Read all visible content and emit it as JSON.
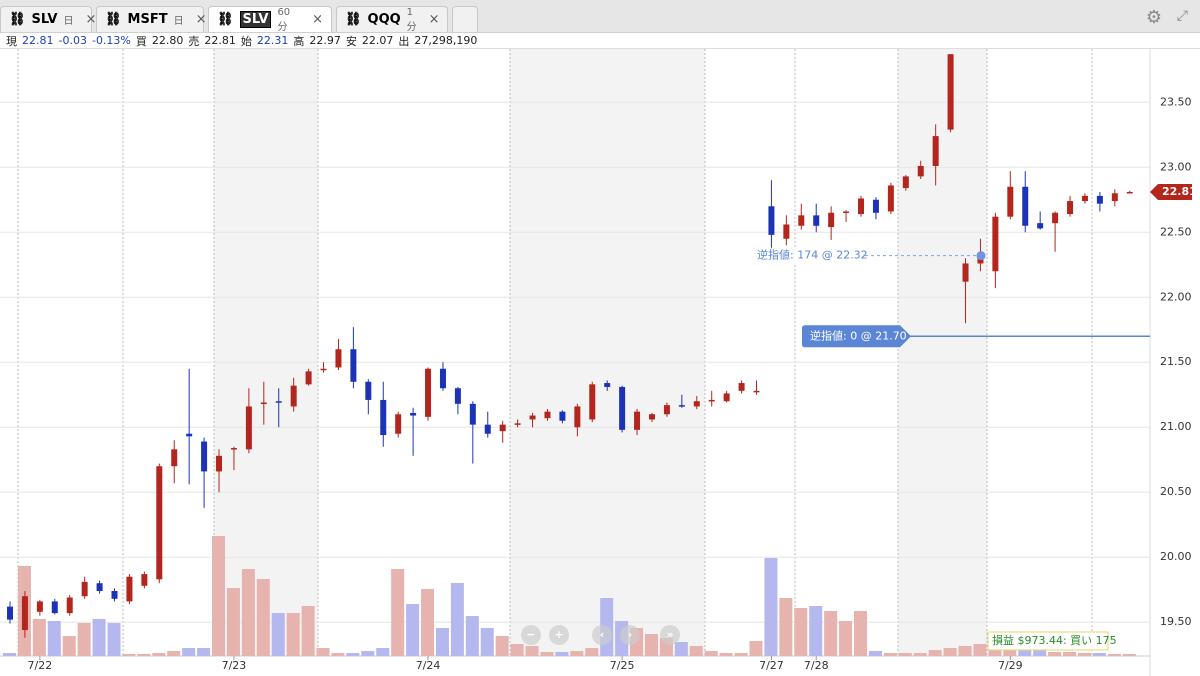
{
  "tabs": [
    {
      "symbol": "SLV",
      "interval": "日"
    },
    {
      "symbol": "MSFT",
      "interval": "日"
    },
    {
      "symbol": "SLV",
      "interval": "60 分"
    },
    {
      "symbol": "QQQ",
      "interval": "1 分"
    }
  ],
  "quote": {
    "last_label": "現",
    "last": "22.81",
    "change": "-0.03",
    "change_pct": "-0.13%",
    "bid_label": "買",
    "bid": "22.80",
    "ask_label": "売",
    "ask": "22.81",
    "open_label": "始",
    "open": "22.31",
    "high_label": "高",
    "high": "22.97",
    "low_label": "安",
    "low": "22.07",
    "volume_label": "出",
    "volume": "27,298,190"
  },
  "chart_data": {
    "type": "candlestick",
    "categories": [
      null,
      null,
      "7/22",
      null,
      null,
      null,
      null,
      null,
      null,
      null,
      null,
      null,
      null,
      null,
      null,
      "7/23",
      null,
      null,
      null,
      null,
      null,
      null,
      null,
      null,
      null,
      null,
      null,
      null,
      "7/24",
      null,
      null,
      null,
      null,
      null,
      null,
      null,
      null,
      null,
      null,
      null,
      null,
      "7/25",
      null,
      null,
      null,
      null,
      null,
      null,
      null,
      null,
      null,
      "7/27",
      null,
      null,
      "7/28",
      null,
      null,
      null,
      null,
      null,
      null,
      null,
      null,
      null,
      null,
      null,
      null,
      "7/29",
      null,
      null,
      null,
      null,
      null,
      null,
      null,
      null
    ],
    "candles": {
      "open": [
        19.62,
        19.44,
        19.58,
        19.66,
        19.57,
        19.7,
        19.8,
        19.74,
        19.66,
        19.78,
        19.83,
        20.7,
        20.95,
        20.89,
        20.66,
        20.83,
        20.83,
        21.18,
        21.2,
        21.16,
        21.33,
        21.44,
        21.46,
        21.6,
        21.35,
        21.21,
        20.95,
        21.11,
        21.08,
        21.45,
        21.3,
        21.18,
        21.02,
        20.97,
        21.02,
        21.06,
        21.07,
        21.12,
        21.0,
        21.06,
        21.34,
        21.31,
        20.98,
        21.06,
        21.1,
        21.17,
        21.16,
        21.2,
        21.2,
        21.28,
        21.27,
        22.7,
        22.45,
        22.55,
        22.63,
        22.54,
        22.65,
        22.64,
        22.75,
        22.66,
        22.84,
        22.93,
        23.01,
        23.29,
        22.12,
        22.26,
        22.2,
        22.62,
        22.85,
        22.57,
        22.57,
        22.64,
        22.74,
        22.78,
        22.74,
        22.81
      ],
      "high": [
        19.66,
        19.74,
        19.67,
        19.68,
        19.71,
        19.85,
        19.82,
        19.76,
        19.87,
        19.89,
        20.72,
        20.9,
        21.45,
        20.92,
        20.83,
        20.85,
        21.3,
        21.35,
        21.3,
        21.38,
        21.45,
        21.5,
        21.68,
        21.77,
        21.37,
        21.35,
        21.12,
        21.15,
        21.46,
        21.5,
        21.31,
        21.2,
        21.12,
        21.05,
        21.06,
        21.11,
        21.14,
        21.13,
        21.18,
        21.35,
        21.36,
        21.32,
        21.14,
        21.11,
        21.19,
        21.25,
        21.24,
        21.28,
        21.28,
        21.36,
        21.36,
        22.9,
        22.63,
        22.72,
        22.72,
        22.7,
        22.67,
        22.78,
        22.77,
        22.88,
        22.94,
        23.05,
        23.33,
        23.87,
        22.3,
        22.45,
        22.65,
        22.97,
        22.97,
        22.66,
        22.66,
        22.78,
        22.8,
        22.81,
        22.83,
        22.82
      ],
      "low": [
        19.49,
        19.38,
        19.55,
        19.56,
        19.55,
        19.68,
        19.72,
        19.66,
        19.64,
        19.76,
        19.8,
        20.57,
        20.56,
        20.38,
        20.5,
        20.67,
        20.8,
        21.02,
        21.0,
        21.12,
        21.32,
        21.42,
        21.44,
        21.3,
        21.1,
        20.85,
        20.92,
        20.78,
        21.05,
        21.28,
        21.1,
        20.72,
        20.92,
        20.88,
        21.0,
        21.0,
        21.05,
        21.03,
        20.93,
        21.04,
        21.28,
        20.96,
        20.94,
        21.04,
        21.08,
        21.15,
        21.14,
        21.16,
        21.19,
        21.26,
        21.25,
        22.3,
        22.4,
        22.52,
        22.5,
        22.44,
        22.58,
        22.62,
        22.6,
        22.64,
        22.82,
        22.91,
        22.86,
        23.27,
        21.8,
        22.2,
        22.07,
        22.6,
        22.5,
        22.52,
        22.35,
        22.62,
        22.72,
        22.66,
        22.7,
        22.8
      ],
      "close": [
        19.52,
        19.7,
        19.66,
        19.57,
        19.69,
        19.81,
        19.74,
        19.68,
        19.85,
        19.87,
        20.7,
        20.83,
        20.93,
        20.66,
        20.78,
        20.84,
        21.16,
        21.19,
        21.19,
        21.32,
        21.43,
        21.45,
        21.6,
        21.35,
        21.21,
        20.94,
        21.1,
        21.09,
        21.45,
        21.3,
        21.18,
        21.02,
        20.95,
        21.02,
        21.03,
        21.09,
        21.12,
        21.05,
        21.16,
        21.33,
        21.31,
        20.98,
        21.12,
        21.1,
        21.17,
        21.16,
        21.2,
        21.21,
        21.26,
        21.34,
        21.28,
        22.48,
        22.56,
        22.63,
        22.55,
        22.65,
        22.66,
        22.76,
        22.65,
        22.86,
        22.93,
        23.01,
        23.24,
        23.87,
        22.26,
        22.31,
        22.62,
        22.85,
        22.55,
        22.53,
        22.65,
        22.74,
        22.78,
        22.72,
        22.8,
        22.81
      ]
    },
    "volume": [
      3,
      90,
      37,
      35,
      20,
      33,
      37,
      33,
      2,
      2,
      3,
      5,
      8,
      8,
      120,
      68,
      87,
      77,
      43,
      43,
      50,
      8,
      3,
      3,
      5,
      8,
      87,
      52,
      67,
      28,
      73,
      40,
      28,
      20,
      12,
      10,
      4,
      4,
      5,
      8,
      58,
      35,
      28,
      22,
      18,
      14,
      10,
      5,
      3,
      3,
      15,
      98,
      58,
      48,
      50,
      45,
      35,
      45,
      5,
      3,
      3,
      3,
      6,
      8,
      10,
      12,
      10,
      8,
      6,
      6,
      4,
      4,
      3,
      3,
      2,
      2
    ],
    "up_color": "#b3261e",
    "down_color": "#1c33b8",
    "up_volume_color": "#e6b3ae",
    "down_volume_color": "#b4b8ee",
    "ylim": [
      19.24,
      23.91
    ],
    "yticks": [
      {
        "value": 19.5,
        "label": "19.50"
      },
      {
        "value": 20,
        "label": "20.00"
      },
      {
        "value": 20.5,
        "label": "20.50"
      },
      {
        "value": 21,
        "label": "21.00"
      },
      {
        "value": 21.5,
        "label": "21.50"
      },
      {
        "value": 22,
        "label": "22.00"
      },
      {
        "value": 22.5,
        "label": "22.50"
      },
      {
        "value": 23,
        "label": "23.00"
      },
      {
        "value": 23.5,
        "label": "23.50"
      }
    ],
    "grid": true,
    "last_price": 22.81,
    "orders": [
      {
        "text": "逆指値: 174 @ 22.32",
        "price": 22.32
      },
      {
        "text": "逆指値: 0 @ 21.70",
        "price": 21.7
      }
    ],
    "pnl_label": "損益 $973.44: 買い 175"
  }
}
